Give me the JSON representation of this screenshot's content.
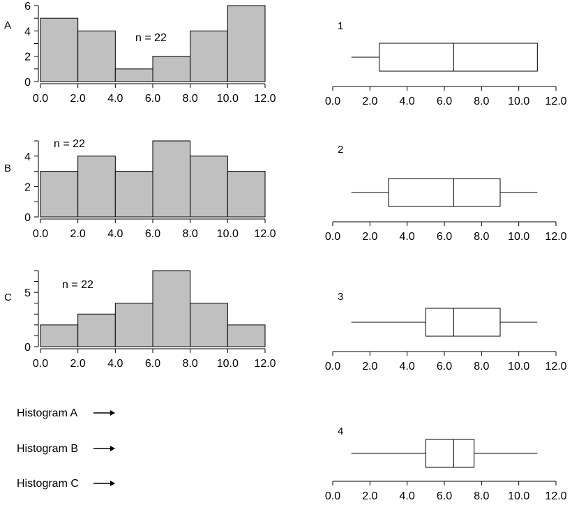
{
  "chart_data": [
    {
      "type": "bar",
      "panel_label": "A",
      "n_label": "n = 22",
      "bins": [
        [
          0,
          2
        ],
        [
          2,
          4
        ],
        [
          4,
          6
        ],
        [
          6,
          8
        ],
        [
          8,
          10
        ],
        [
          10,
          12
        ]
      ],
      "values": [
        5,
        4,
        1,
        2,
        4,
        6
      ],
      "xlim": [
        0,
        12
      ],
      "xticks": [
        "0.0",
        "2.0",
        "4.0",
        "6.0",
        "8.0",
        "10.0",
        "12.0"
      ],
      "ylim": [
        0,
        6
      ],
      "yticks": [
        "0",
        "2",
        "4",
        "6"
      ],
      "bar_color": "#c0c0c0"
    },
    {
      "type": "bar",
      "panel_label": "B",
      "n_label": "n = 22",
      "bins": [
        [
          0,
          2
        ],
        [
          2,
          4
        ],
        [
          4,
          6
        ],
        [
          6,
          8
        ],
        [
          8,
          10
        ],
        [
          10,
          12
        ]
      ],
      "values": [
        3,
        4,
        3,
        5,
        4,
        3
      ],
      "xlim": [
        0,
        12
      ],
      "xticks": [
        "0.0",
        "2.0",
        "4.0",
        "6.0",
        "8.0",
        "10.0",
        "12.0"
      ],
      "ylim": [
        0,
        5
      ],
      "yticks": [
        "0",
        "2",
        "4"
      ],
      "bar_color": "#c0c0c0"
    },
    {
      "type": "bar",
      "panel_label": "C",
      "n_label": "n = 22",
      "bins": [
        [
          0,
          2
        ],
        [
          2,
          4
        ],
        [
          4,
          6
        ],
        [
          6,
          8
        ],
        [
          8,
          10
        ],
        [
          10,
          12
        ]
      ],
      "values": [
        2,
        3,
        4,
        7,
        4,
        2
      ],
      "xlim": [
        0,
        12
      ],
      "xticks": [
        "0.0",
        "2.0",
        "4.0",
        "6.0",
        "8.0",
        "10.0",
        "12.0"
      ],
      "ylim": [
        0,
        7
      ],
      "yticks": [
        "0",
        "5"
      ],
      "bar_color": "#c0c0c0"
    },
    {
      "type": "boxplot",
      "panel_label": "1",
      "min": 1.0,
      "q1": 2.5,
      "median": 6.5,
      "q3": 11.0,
      "max": 11.0,
      "xlim": [
        0,
        12
      ],
      "xticks": [
        "0.0",
        "2.0",
        "4.0",
        "6.0",
        "8.0",
        "10.0",
        "12.0"
      ]
    },
    {
      "type": "boxplot",
      "panel_label": "2",
      "min": 1.0,
      "q1": 3.0,
      "median": 6.5,
      "q3": 9.0,
      "max": 11.0,
      "xlim": [
        0,
        12
      ],
      "xticks": [
        "0.0",
        "2.0",
        "4.0",
        "6.0",
        "8.0",
        "10.0",
        "12.0"
      ]
    },
    {
      "type": "boxplot",
      "panel_label": "3",
      "min": 1.0,
      "q1": 5.0,
      "median": 6.5,
      "q3": 9.0,
      "max": 11.0,
      "xlim": [
        0,
        12
      ],
      "xticks": [
        "0.0",
        "2.0",
        "4.0",
        "6.0",
        "8.0",
        "10.0",
        "12.0"
      ]
    },
    {
      "type": "boxplot",
      "panel_label": "4",
      "min": 1.0,
      "q1": 5.0,
      "median": 6.5,
      "q3": 7.6,
      "max": 11.0,
      "xlim": [
        0,
        12
      ],
      "xticks": [
        "0.0",
        "2.0",
        "4.0",
        "6.0",
        "8.0",
        "10.0",
        "12.0"
      ]
    }
  ],
  "legend": {
    "items": [
      {
        "label": "Histogram A"
      },
      {
        "label": "Histogram B"
      },
      {
        "label": "Histogram C"
      }
    ]
  }
}
